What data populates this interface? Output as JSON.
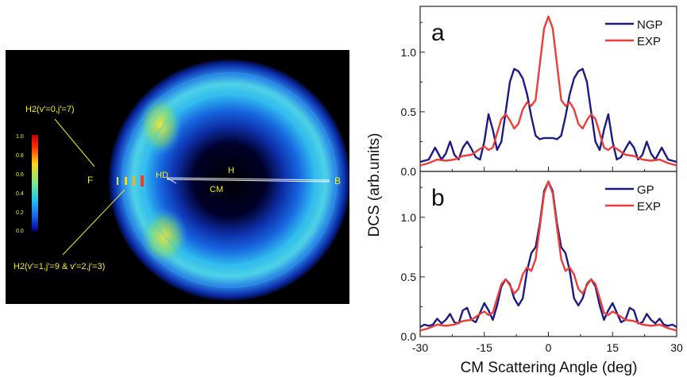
{
  "colors": {
    "ngp": "#1c1a83",
    "exp": "#ec3d3a",
    "gp": "#1c1a83",
    "annotation": "#f2ee1e",
    "image_bg": "#000000"
  },
  "image_panel": {
    "colorbar_ticks": [
      "1.0",
      "0.8",
      "0.6",
      "0.4",
      "0.2",
      "0.0"
    ],
    "annotations": {
      "top_label": "H2(v′=0,j′=7)",
      "bottom_label": "H2(v′=1,j′=9 & v′=2,j′=3)",
      "F": "F",
      "HD": "HD",
      "H": "H",
      "CM": "CM",
      "B": "B"
    }
  },
  "chart_data": {
    "type": "line",
    "ylabel": "DCS (arb.units)",
    "xlabel": "CM Scattering Angle (deg)",
    "xlim": [
      -30,
      30
    ],
    "x_ticks": [
      "-30",
      "-15",
      "0",
      "15",
      "30"
    ],
    "panels": [
      {
        "label": "a",
        "ylim": [
          0,
          1.35
        ],
        "y_ticks": [
          "0.0",
          "0.5",
          "1.0"
        ],
        "legend": "top-right",
        "series": [
          {
            "name": "NGP",
            "color": "#1c1a83",
            "points": [
              [
                -30,
                0.08
              ],
              [
                -28,
                0.1
              ],
              [
                -26.5,
                0.2
              ],
              [
                -25,
                0.1
              ],
              [
                -24,
                0.15
              ],
              [
                -23,
                0.25
              ],
              [
                -22,
                0.14
              ],
              [
                -21,
                0.1
              ],
              [
                -20,
                0.2
              ],
              [
                -19,
                0.25
              ],
              [
                -18,
                0.19
              ],
              [
                -17,
                0.12
              ],
              [
                -16,
                0.1
              ],
              [
                -15,
                0.25
              ],
              [
                -14,
                0.48
              ],
              [
                -13,
                0.35
              ],
              [
                -12,
                0.18
              ],
              [
                -11,
                0.25
              ],
              [
                -10,
                0.5
              ],
              [
                -9,
                0.75
              ],
              [
                -8,
                0.86
              ],
              [
                -7,
                0.84
              ],
              [
                -6,
                0.78
              ],
              [
                -5,
                0.65
              ],
              [
                -4,
                0.46
              ],
              [
                -3,
                0.3
              ],
              [
                -2,
                0.27
              ],
              [
                -1,
                0.28
              ],
              [
                0,
                0.28
              ],
              [
                1,
                0.28
              ],
              [
                2,
                0.27
              ],
              [
                3,
                0.3
              ],
              [
                4,
                0.46
              ],
              [
                5,
                0.65
              ],
              [
                6,
                0.78
              ],
              [
                7,
                0.84
              ],
              [
                8,
                0.86
              ],
              [
                9,
                0.75
              ],
              [
                10,
                0.5
              ],
              [
                11,
                0.25
              ],
              [
                12,
                0.18
              ],
              [
                13,
                0.35
              ],
              [
                14,
                0.48
              ],
              [
                15,
                0.25
              ],
              [
                16,
                0.1
              ],
              [
                17,
                0.12
              ],
              [
                18,
                0.19
              ],
              [
                19,
                0.25
              ],
              [
                20,
                0.2
              ],
              [
                21,
                0.1
              ],
              [
                22,
                0.14
              ],
              [
                23,
                0.25
              ],
              [
                24,
                0.15
              ],
              [
                25,
                0.1
              ],
              [
                26.5,
                0.2
              ],
              [
                28,
                0.1
              ],
              [
                30,
                0.08
              ]
            ]
          },
          {
            "name": "EXP",
            "color": "#ec3d3a",
            "points": [
              [
                -30,
                0.05
              ],
              [
                -28,
                0.07
              ],
              [
                -26,
                0.1
              ],
              [
                -24,
                0.09
              ],
              [
                -22,
                0.1
              ],
              [
                -20,
                0.13
              ],
              [
                -18,
                0.14
              ],
              [
                -16,
                0.19
              ],
              [
                -15,
                0.21
              ],
              [
                -14,
                0.18
              ],
              [
                -13,
                0.2
              ],
              [
                -12,
                0.32
              ],
              [
                -11,
                0.44
              ],
              [
                -10,
                0.48
              ],
              [
                -9,
                0.43
              ],
              [
                -8,
                0.36
              ],
              [
                -7,
                0.4
              ],
              [
                -6,
                0.52
              ],
              [
                -5,
                0.58
              ],
              [
                -4,
                0.55
              ],
              [
                -3,
                0.6
              ],
              [
                -2,
                0.9
              ],
              [
                -1,
                1.2
              ],
              [
                0,
                1.3
              ],
              [
                1,
                1.2
              ],
              [
                2,
                0.9
              ],
              [
                3,
                0.6
              ],
              [
                4,
                0.55
              ],
              [
                5,
                0.58
              ],
              [
                6,
                0.52
              ],
              [
                7,
                0.4
              ],
              [
                8,
                0.36
              ],
              [
                9,
                0.43
              ],
              [
                10,
                0.48
              ],
              [
                11,
                0.44
              ],
              [
                12,
                0.32
              ],
              [
                13,
                0.2
              ],
              [
                14,
                0.18
              ],
              [
                15,
                0.21
              ],
              [
                16,
                0.19
              ],
              [
                18,
                0.14
              ],
              [
                20,
                0.13
              ],
              [
                22,
                0.1
              ],
              [
                24,
                0.09
              ],
              [
                26,
                0.1
              ],
              [
                28,
                0.07
              ],
              [
                30,
                0.05
              ]
            ]
          }
        ]
      },
      {
        "label": "b",
        "ylim": [
          0,
          1.35
        ],
        "y_ticks": [
          "0.0",
          "0.5",
          "1.0"
        ],
        "legend": "top-right",
        "series": [
          {
            "name": "GP",
            "color": "#1c1a83",
            "points": [
              [
                -30,
                0.08
              ],
              [
                -29,
                0.1
              ],
              [
                -28,
                0.09
              ],
              [
                -27,
                0.1
              ],
              [
                -26,
                0.15
              ],
              [
                -25,
                0.11
              ],
              [
                -24,
                0.14
              ],
              [
                -23,
                0.19
              ],
              [
                -22,
                0.12
              ],
              [
                -21,
                0.11
              ],
              [
                -20,
                0.22
              ],
              [
                -19,
                0.24
              ],
              [
                -18,
                0.14
              ],
              [
                -17,
                0.12
              ],
              [
                -16,
                0.2
              ],
              [
                -15,
                0.28
              ],
              [
                -14,
                0.22
              ],
              [
                -13,
                0.14
              ],
              [
                -12,
                0.26
              ],
              [
                -11,
                0.42
              ],
              [
                -10,
                0.48
              ],
              [
                -9,
                0.44
              ],
              [
                -8,
                0.32
              ],
              [
                -7,
                0.26
              ],
              [
                -6,
                0.32
              ],
              [
                -5,
                0.55
              ],
              [
                -4,
                0.7
              ],
              [
                -3,
                0.75
              ],
              [
                -2,
                0.95
              ],
              [
                -1,
                1.22
              ],
              [
                0,
                1.3
              ],
              [
                1,
                1.22
              ],
              [
                2,
                0.95
              ],
              [
                3,
                0.75
              ],
              [
                4,
                0.7
              ],
              [
                5,
                0.55
              ],
              [
                6,
                0.32
              ],
              [
                7,
                0.26
              ],
              [
                8,
                0.32
              ],
              [
                9,
                0.44
              ],
              [
                10,
                0.48
              ],
              [
                11,
                0.42
              ],
              [
                12,
                0.26
              ],
              [
                13,
                0.14
              ],
              [
                14,
                0.22
              ],
              [
                15,
                0.28
              ],
              [
                16,
                0.2
              ],
              [
                17,
                0.12
              ],
              [
                18,
                0.14
              ],
              [
                19,
                0.24
              ],
              [
                20,
                0.22
              ],
              [
                21,
                0.11
              ],
              [
                22,
                0.12
              ],
              [
                23,
                0.19
              ],
              [
                24,
                0.14
              ],
              [
                25,
                0.11
              ],
              [
                26,
                0.15
              ],
              [
                27,
                0.1
              ],
              [
                28,
                0.09
              ],
              [
                29,
                0.1
              ],
              [
                30,
                0.08
              ]
            ]
          },
          {
            "name": "EXP",
            "color": "#ec3d3a",
            "points": [
              [
                -30,
                0.05
              ],
              [
                -28,
                0.07
              ],
              [
                -26,
                0.1
              ],
              [
                -24,
                0.09
              ],
              [
                -22,
                0.1
              ],
              [
                -20,
                0.13
              ],
              [
                -18,
                0.14
              ],
              [
                -16,
                0.19
              ],
              [
                -15,
                0.21
              ],
              [
                -14,
                0.18
              ],
              [
                -13,
                0.2
              ],
              [
                -12,
                0.32
              ],
              [
                -11,
                0.44
              ],
              [
                -10,
                0.48
              ],
              [
                -9,
                0.43
              ],
              [
                -8,
                0.36
              ],
              [
                -7,
                0.4
              ],
              [
                -6,
                0.52
              ],
              [
                -5,
                0.58
              ],
              [
                -4,
                0.55
              ],
              [
                -3,
                0.65
              ],
              [
                -2,
                0.92
              ],
              [
                -1,
                1.2
              ],
              [
                0,
                1.3
              ],
              [
                1,
                1.2
              ],
              [
                2,
                0.92
              ],
              [
                3,
                0.65
              ],
              [
                4,
                0.55
              ],
              [
                5,
                0.58
              ],
              [
                6,
                0.52
              ],
              [
                7,
                0.4
              ],
              [
                8,
                0.36
              ],
              [
                9,
                0.43
              ],
              [
                10,
                0.48
              ],
              [
                11,
                0.44
              ],
              [
                12,
                0.32
              ],
              [
                13,
                0.2
              ],
              [
                14,
                0.18
              ],
              [
                15,
                0.21
              ],
              [
                16,
                0.19
              ],
              [
                18,
                0.14
              ],
              [
                20,
                0.13
              ],
              [
                22,
                0.1
              ],
              [
                24,
                0.09
              ],
              [
                26,
                0.1
              ],
              [
                28,
                0.07
              ],
              [
                30,
                0.05
              ]
            ]
          }
        ]
      }
    ]
  }
}
